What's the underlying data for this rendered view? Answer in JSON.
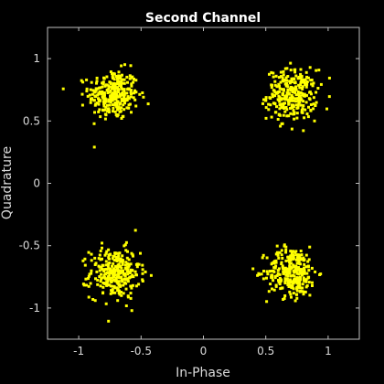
{
  "colors": {
    "background": "#000000",
    "axes_frame": "#bfbfbf",
    "text": "#d9d9d9",
    "title": "#ffffff",
    "points": "#ffff00"
  },
  "chart_data": {
    "type": "scatter",
    "title": "Second Channel",
    "xlabel": "In-Phase",
    "ylabel": "Quadrature",
    "xlim": [
      -1.25,
      1.25
    ],
    "ylim": [
      -1.25,
      1.25
    ],
    "x_ticks": [
      -1,
      -0.5,
      0,
      0.5,
      1
    ],
    "x_tick_labels": [
      "-1",
      "-0.5",
      "0",
      "0.5",
      "1"
    ],
    "y_ticks": [
      -1,
      -0.5,
      0,
      0.5,
      1
    ],
    "y_tick_labels": [
      "-1",
      "-0.5",
      "0",
      "0.5",
      "1"
    ],
    "grid": false,
    "marker": "square",
    "clusters": [
      {
        "center": [
          -0.72,
          0.71
        ],
        "spread": 0.1,
        "count": 300
      },
      {
        "center": [
          0.71,
          0.71
        ],
        "spread": 0.1,
        "count": 300
      },
      {
        "center": [
          -0.71,
          -0.72
        ],
        "spread": 0.1,
        "count": 300
      },
      {
        "center": [
          0.71,
          -0.71
        ],
        "spread": 0.1,
        "count": 300
      }
    ]
  }
}
